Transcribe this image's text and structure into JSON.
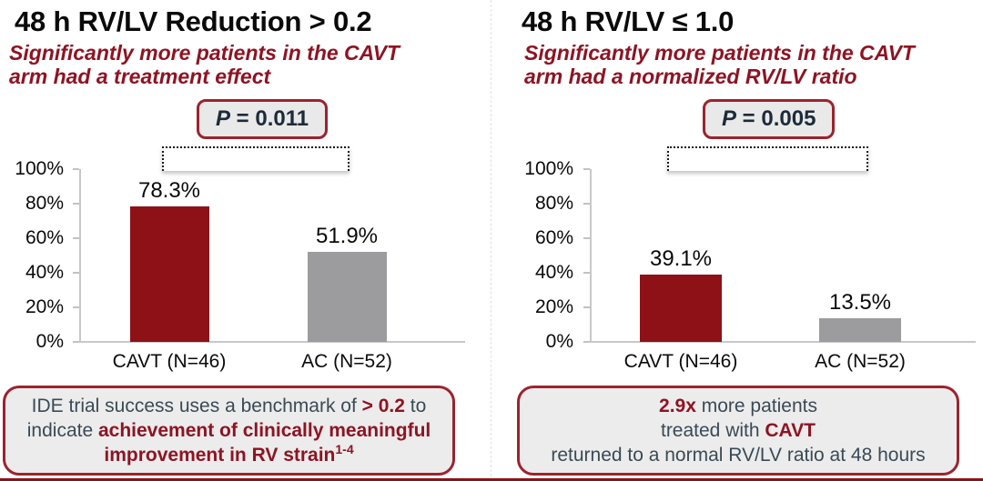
{
  "colors": {
    "bar_red": "#8E1118",
    "bar_gray": "#9C9C9E",
    "accent_dark_red_text": "#8F1322",
    "box_border_red": "#9C232E",
    "box_background_gray": "#ECECEC",
    "slate_body_text": "#3A4A55",
    "p_value_text": "#1C2B39",
    "axis_gray": "#C8C8C8",
    "bottom_rule_red": "#8E1118"
  },
  "chart_data": [
    {
      "type": "bar",
      "title": "48 h RV/LV Reduction > 0.2",
      "subtitle_lines": [
        "Significantly more patients in the CAVT",
        "arm had a treatment effect"
      ],
      "p_label": "P",
      "p_value": " = 0.011",
      "categories": [
        "CAVT (N=46)",
        "AC (N=52)"
      ],
      "values": [
        78.3,
        51.9
      ],
      "value_labels": [
        "78.3%",
        "51.9%"
      ],
      "bar_colors": [
        "#8E1118",
        "#9C9C9E"
      ],
      "y_ticks": [
        "100%",
        "80%",
        "60%",
        "40%",
        "20%",
        "0%"
      ],
      "ylim": [
        0,
        100
      ],
      "grid": false,
      "legend_position": "none",
      "note_segments": [
        {
          "text": "IDE trial success uses a benchmark of ",
          "style": "plain"
        },
        {
          "text": "> 0.2",
          "style": "red-bold"
        },
        {
          "text": " to",
          "style": "plain"
        },
        {
          "style": "br"
        },
        {
          "text": "indicate ",
          "style": "plain"
        },
        {
          "text": "achievement of clinically meaningful",
          "style": "red-bold"
        },
        {
          "style": "br"
        },
        {
          "text": "improvement in RV strain",
          "style": "red-bold"
        },
        {
          "text": "1-4",
          "style": "sup-red-bold"
        }
      ]
    },
    {
      "type": "bar",
      "title": "48 h RV/LV ≤ 1.0",
      "subtitle_lines": [
        "Significantly more patients in the CAVT",
        "arm had a normalized RV/LV ratio"
      ],
      "p_label": "P",
      "p_value": " = 0.005",
      "categories": [
        "CAVT (N=46)",
        "AC (N=52)"
      ],
      "values": [
        39.1,
        13.5
      ],
      "value_labels": [
        "39.1%",
        "13.5%"
      ],
      "bar_colors": [
        "#8E1118",
        "#9C9C9E"
      ],
      "y_ticks": [
        "100%",
        "80%",
        "60%",
        "40%",
        "20%",
        "0%"
      ],
      "ylim": [
        0,
        100
      ],
      "grid": false,
      "legend_position": "none",
      "note_segments": [
        {
          "text": "2.9x",
          "style": "red-bold"
        },
        {
          "text": " more patients",
          "style": "plain"
        },
        {
          "style": "br"
        },
        {
          "text": "treated with ",
          "style": "plain"
        },
        {
          "text": "CAVT",
          "style": "red-bold"
        },
        {
          "style": "br"
        },
        {
          "text": "returned to a normal RV/LV ratio at 48 hours",
          "style": "plain"
        }
      ]
    }
  ]
}
